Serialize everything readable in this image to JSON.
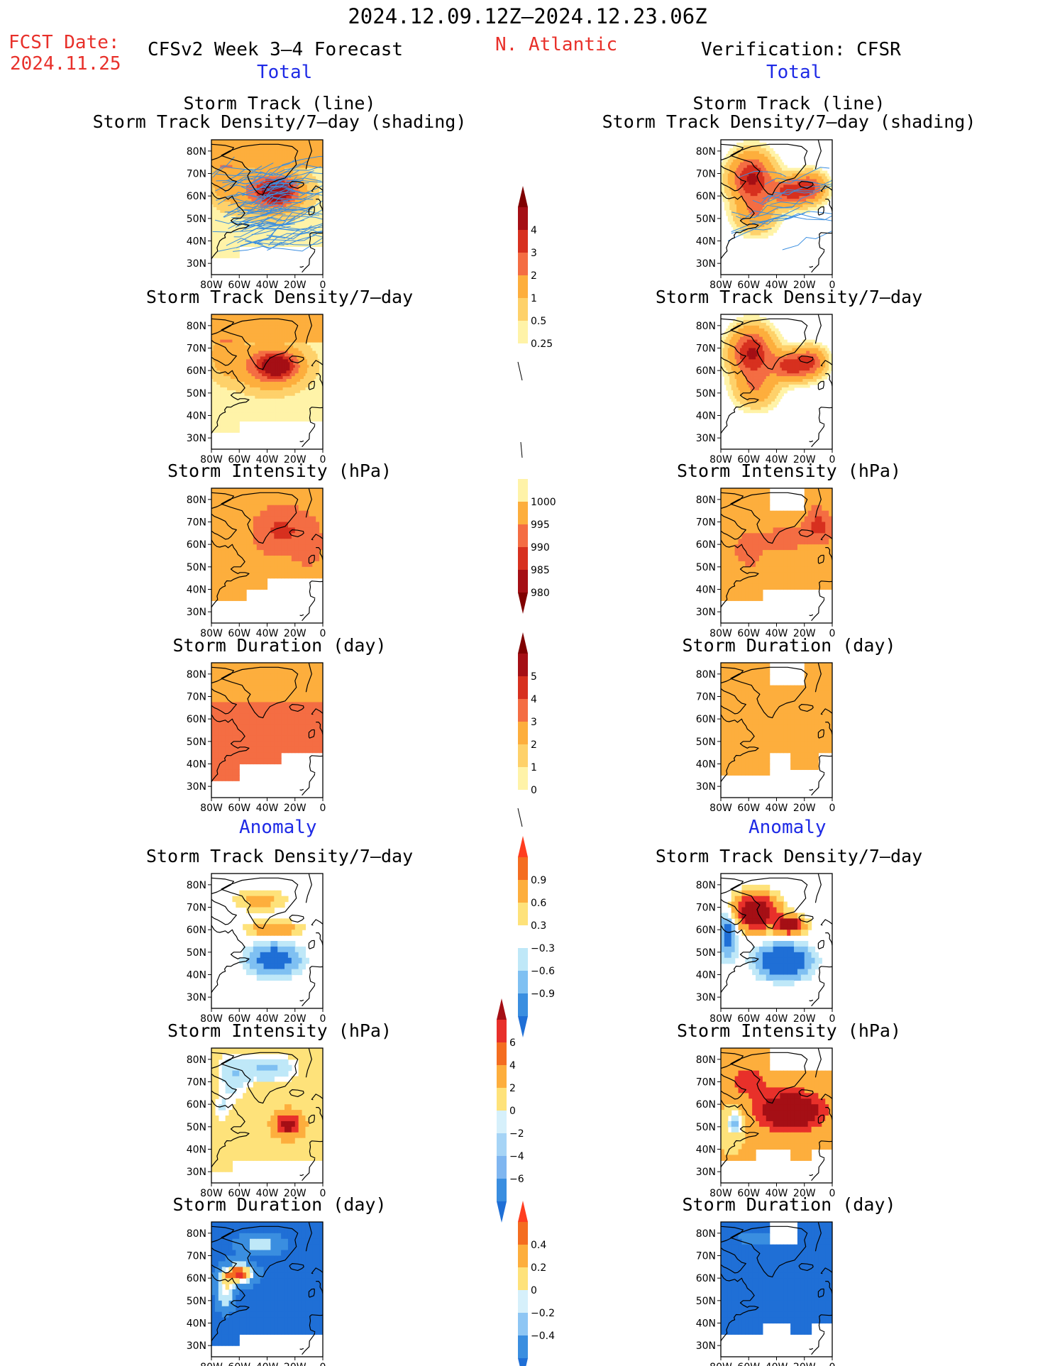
{
  "header": {
    "date_range": "2024.12.09.12Z–2024.12.23.06Z",
    "fcst_label": "FCST Date:",
    "fcst_date": "2024.11.25",
    "model_title": "CFSv2 Week 3–4 Forecast",
    "region": "N. Atlantic",
    "verification": "Verification: CFSR",
    "total_label": "Total",
    "anomaly_label": "Anomaly"
  },
  "panels": {
    "track_title_1": "Storm Track (line)",
    "track_title_2": "Storm Track Density/7–day (shading)",
    "density": "Storm Track Density/7–day",
    "intensity": "Storm Intensity (hPa)",
    "duration": "Storm Duration (day)"
  },
  "axes": {
    "x_ticks": [
      "80W",
      "60W",
      "40W",
      "20W",
      "0"
    ],
    "y_ticks": [
      "80N",
      "70N",
      "60N",
      "50N",
      "40N",
      "30N"
    ]
  },
  "colorbars": {
    "density_total": {
      "labels": [
        "4",
        "3",
        "2",
        "1",
        "0.5",
        "0.25"
      ],
      "colors": [
        "#a50f15",
        "#d7301f",
        "#f46d43",
        "#fdae3d",
        "#fed16a",
        "#fff3a8"
      ],
      "tip_colors": [
        "#7f0000",
        "#ffffff"
      ]
    },
    "intensity_total": {
      "labels": [
        "1000",
        "995",
        "990",
        "985",
        "980"
      ],
      "colors": [
        "#fff3a8",
        "#fdae3d",
        "#f46d43",
        "#d7301f",
        "#a50f15"
      ],
      "tip_colors": [
        "#ffffff",
        "#7f0000"
      ]
    },
    "duration_total": {
      "labels": [
        "5",
        "4",
        "3",
        "2",
        "1",
        "0"
      ],
      "colors": [
        "#a50f15",
        "#d7301f",
        "#f46d43",
        "#fdae3d",
        "#fed16a",
        "#fff3a8"
      ],
      "tip_colors": [
        "#7f0000",
        "#ffffff"
      ]
    },
    "density_anom": {
      "labels": [
        "0.9",
        "0.6",
        "0.3",
        "−0.3",
        "−0.6",
        "−0.9"
      ],
      "colors": [
        "#f46d20",
        "#fdae3d",
        "#fee27a",
        "#ffffff",
        "#bfe8f8",
        "#7fc0f2",
        "#3a8ee0"
      ],
      "tip_colors": [
        "#ff3d1f",
        "#1f6fd6"
      ]
    },
    "intensity_anom": {
      "labels": [
        "6",
        "4",
        "2",
        "0",
        "−2",
        "−4",
        "−6"
      ],
      "colors": [
        "#e8302a",
        "#f46d20",
        "#fdae3d",
        "#fee27a",
        "#d6f0fb",
        "#a6d4f6",
        "#7fb6f0",
        "#3a8ee0"
      ],
      "tip_colors": [
        "#a50f15",
        "#1f6fd6"
      ]
    },
    "duration_anom": {
      "labels": [
        "0.4",
        "0.2",
        "0",
        "−0.2",
        "−0.4"
      ],
      "colors": [
        "#f46d20",
        "#fdae3d",
        "#fee27a",
        "#d6f0fb",
        "#8ec6f4",
        "#3a8ee0"
      ],
      "tip_colors": [
        "#ff3d1f",
        "#1f6fd6"
      ]
    }
  }
}
